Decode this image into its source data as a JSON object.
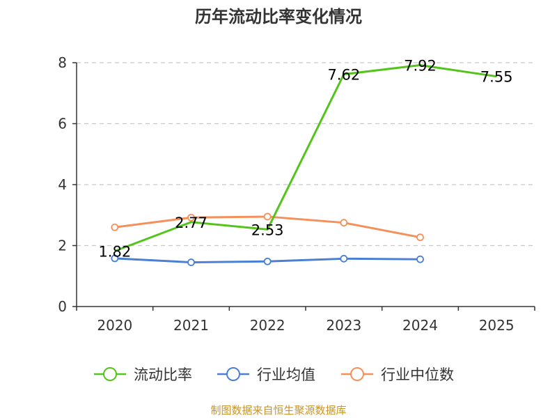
{
  "chart_data": {
    "type": "line",
    "title": "历年流动比率变化情况",
    "categories": [
      "2020",
      "2021",
      "2022",
      "2023",
      "2024",
      "2025"
    ],
    "ylim": [
      0,
      8
    ],
    "yticks": [
      0,
      2,
      4,
      6,
      8
    ],
    "grid": true,
    "legend_position": "bottom",
    "series": [
      {
        "name": "流动比率",
        "color": "#52c41a",
        "markers": false,
        "show_labels": true,
        "values": [
          1.82,
          2.77,
          2.53,
          7.62,
          7.92,
          7.55
        ]
      },
      {
        "name": "行业均值",
        "color": "#4a7fd4",
        "markers": true,
        "show_labels": false,
        "values": [
          1.58,
          1.45,
          1.48,
          1.57,
          1.55,
          null
        ]
      },
      {
        "name": "行业中位数",
        "color": "#f5905a",
        "markers": true,
        "show_labels": false,
        "values": [
          2.6,
          2.92,
          2.95,
          2.75,
          2.27,
          null
        ]
      }
    ]
  },
  "source_text": "制图数据来自恒生聚源数据库"
}
